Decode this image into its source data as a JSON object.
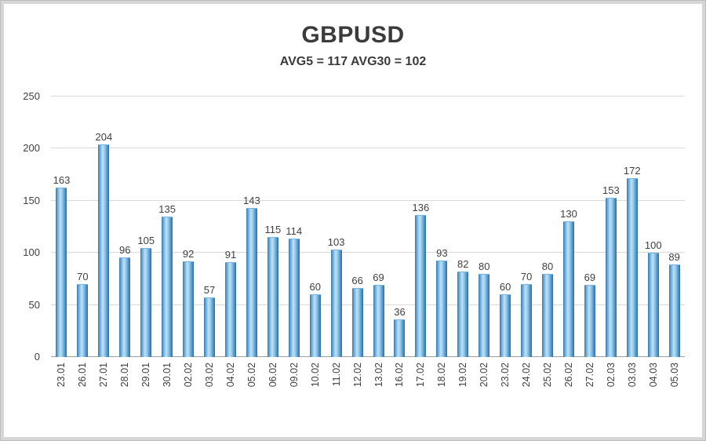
{
  "header": {
    "title": "GBPUSD",
    "subtitle": "AVG5 = 117 AVG30 = 102"
  },
  "chart_data": {
    "type": "bar",
    "title": "GBPUSD",
    "subtitle": "AVG5 = 117 AVG30 = 102",
    "categories": [
      "23.01",
      "26.01",
      "27.01",
      "28.01",
      "29.01",
      "30.01",
      "02.02",
      "03.02",
      "04.02",
      "05.02",
      "06.02",
      "09.02",
      "10.02",
      "11.02",
      "12.02",
      "13.02",
      "16.02",
      "17.02",
      "18.02",
      "19.02",
      "20.02",
      "23.02",
      "24.02",
      "25.02",
      "26.02",
      "27.02",
      "02.03",
      "03.03",
      "04.03",
      "05.03"
    ],
    "values": [
      163,
      70,
      204,
      96,
      105,
      135,
      92,
      57,
      91,
      143,
      115,
      114,
      60,
      103,
      66,
      69,
      36,
      136,
      93,
      82,
      80,
      60,
      70,
      80,
      130,
      69,
      153,
      172,
      100,
      89
    ],
    "xlabel": "",
    "ylabel": "",
    "ylim": [
      0,
      250
    ],
    "yticks": [
      0,
      50,
      100,
      150,
      200,
      250
    ],
    "grid": true,
    "legend": false,
    "data_labels": true,
    "bar_color_light": "#bfe2f7",
    "bar_color_dark": "#3a76aa",
    "text_color": "#3f3f3f",
    "gridline_color": "#d9d9d9"
  }
}
